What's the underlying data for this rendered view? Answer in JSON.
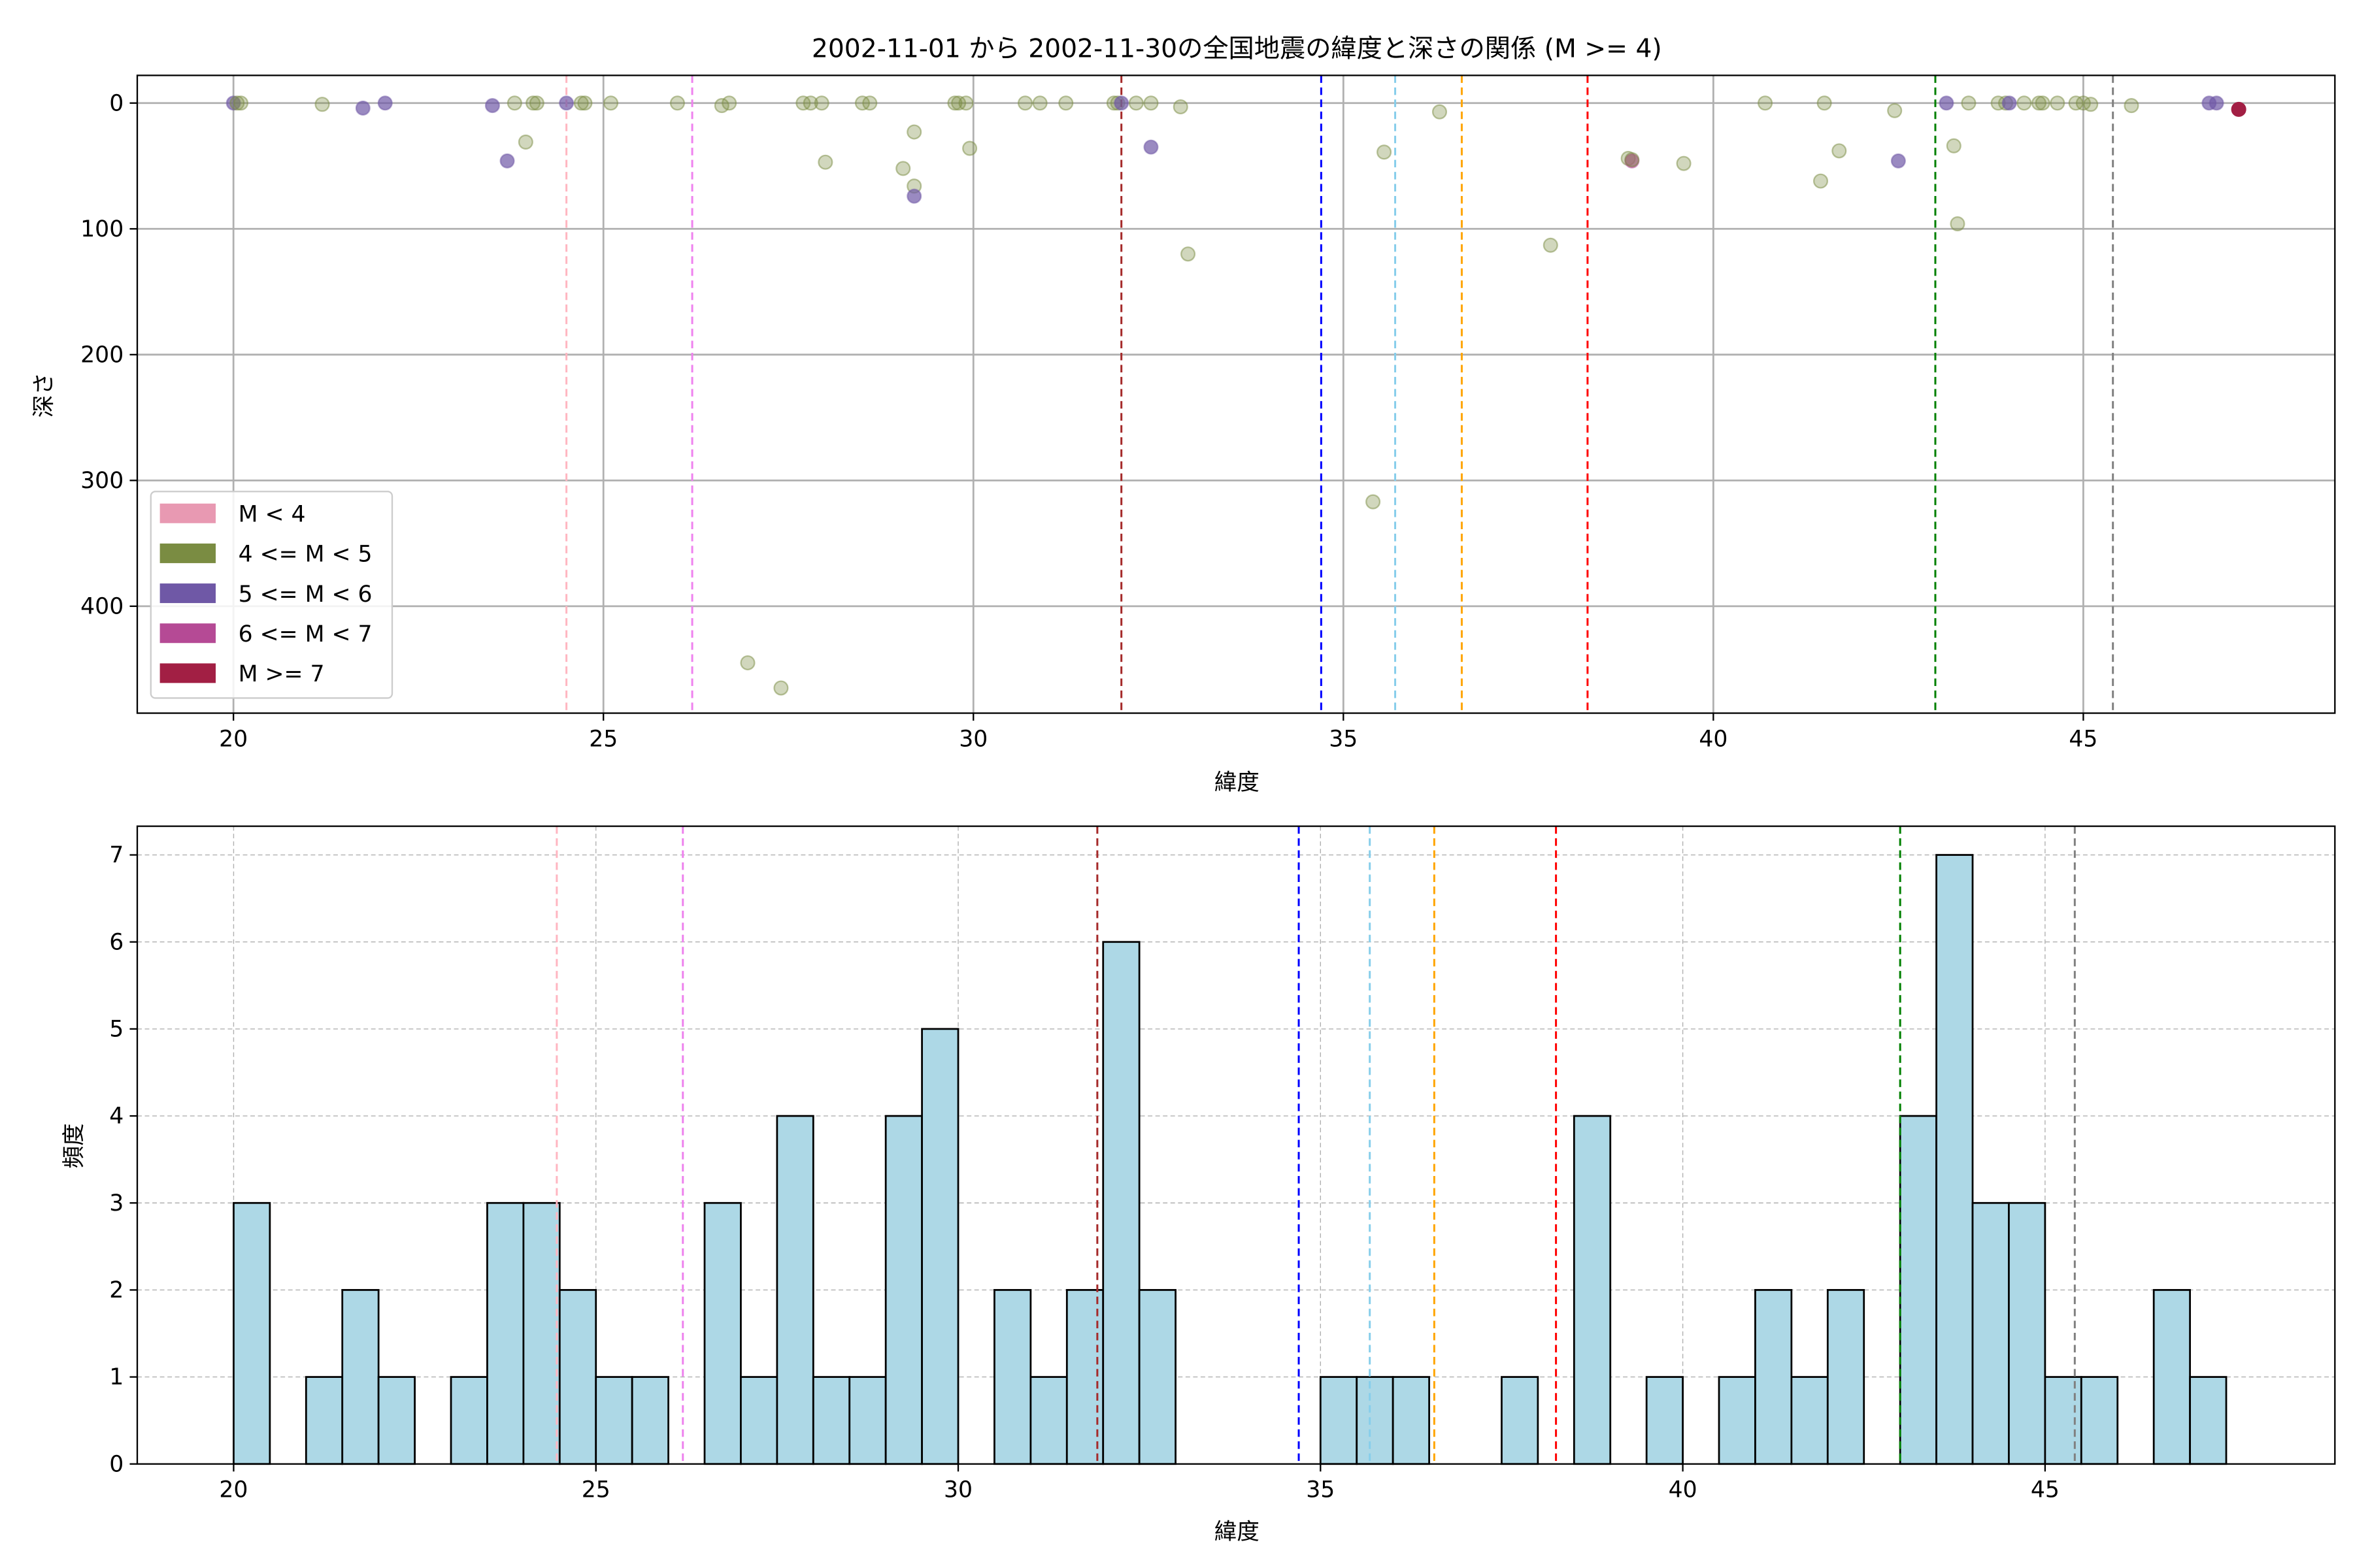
{
  "chart_data": [
    {
      "type": "scatter",
      "title": "2002-11-01 から 2002-11-30の全国地震の緯度と深さの関係 (M >= 4)",
      "xlabel": "緯度",
      "ylabel": "深さ",
      "xlim": [
        18.7,
        48.4
      ],
      "ylim": [
        485,
        -22
      ],
      "y_inverted": true,
      "grid": true,
      "xticks": [
        "20",
        "25",
        "30",
        "35",
        "40",
        "45"
      ],
      "xtick_values": [
        20,
        25,
        30,
        35,
        40,
        45
      ],
      "yticks": [
        "0",
        "100",
        "200",
        "300",
        "400"
      ],
      "ytick_values": [
        0,
        100,
        200,
        300,
        400
      ],
      "legend_position": "lower-left",
      "legend": [
        {
          "label": "M < 4",
          "color": "#e899b2"
        },
        {
          "label": "4 <= M < 5",
          "color": "#7a8c42"
        },
        {
          "label": "5 <= M < 6",
          "color": "#6f58a6"
        },
        {
          "label": "6 <= M < 7",
          "color": "#b54a95"
        },
        {
          "label": "M >= 7",
          "color": "#a21f44"
        }
      ],
      "points": [
        [
          20.0,
          0,
          2
        ],
        [
          20.05,
          0,
          1
        ],
        [
          20.1,
          0,
          1
        ],
        [
          21.2,
          1,
          1
        ],
        [
          21.75,
          4,
          2
        ],
        [
          22.05,
          0,
          2
        ],
        [
          23.5,
          2,
          2
        ],
        [
          23.7,
          46,
          2
        ],
        [
          23.8,
          0,
          1
        ],
        [
          23.95,
          31,
          1
        ],
        [
          24.05,
          0,
          1
        ],
        [
          24.1,
          0,
          1
        ],
        [
          24.5,
          0,
          2
        ],
        [
          24.7,
          0,
          1
        ],
        [
          24.75,
          0,
          1
        ],
        [
          25.1,
          0,
          1
        ],
        [
          26.0,
          0,
          1
        ],
        [
          26.6,
          2,
          1
        ],
        [
          26.7,
          0,
          1
        ],
        [
          26.95,
          445,
          1
        ],
        [
          27.4,
          465,
          1
        ],
        [
          27.7,
          0,
          1
        ],
        [
          27.8,
          0,
          1
        ],
        [
          27.95,
          0,
          1
        ],
        [
          28.0,
          47,
          1
        ],
        [
          28.5,
          0,
          1
        ],
        [
          28.6,
          0,
          1
        ],
        [
          29.05,
          52,
          1
        ],
        [
          29.2,
          23,
          1
        ],
        [
          29.2,
          66,
          1
        ],
        [
          29.2,
          74,
          2
        ],
        [
          29.75,
          0,
          1
        ],
        [
          29.8,
          0,
          1
        ],
        [
          29.9,
          0,
          1
        ],
        [
          29.95,
          36,
          1
        ],
        [
          30.7,
          0,
          1
        ],
        [
          30.9,
          0,
          1
        ],
        [
          31.25,
          0,
          1
        ],
        [
          31.9,
          0,
          1
        ],
        [
          31.95,
          0,
          1
        ],
        [
          32.0,
          0,
          2
        ],
        [
          32.2,
          0,
          1
        ],
        [
          32.4,
          0,
          1
        ],
        [
          32.4,
          35,
          2
        ],
        [
          32.8,
          3,
          1
        ],
        [
          32.9,
          120,
          1
        ],
        [
          35.4,
          317,
          1
        ],
        [
          35.55,
          39,
          1
        ],
        [
          36.3,
          7,
          1
        ],
        [
          37.8,
          113,
          1
        ],
        [
          38.85,
          44,
          1
        ],
        [
          38.9,
          46,
          3
        ],
        [
          38.9,
          45,
          1
        ],
        [
          39.6,
          48,
          1
        ],
        [
          40.7,
          0,
          1
        ],
        [
          41.45,
          62,
          1
        ],
        [
          41.5,
          0,
          1
        ],
        [
          41.7,
          38,
          1
        ],
        [
          42.45,
          6,
          1
        ],
        [
          42.5,
          46,
          2
        ],
        [
          43.15,
          0,
          2
        ],
        [
          43.25,
          34,
          1
        ],
        [
          43.3,
          96,
          1
        ],
        [
          43.45,
          0,
          1
        ],
        [
          43.85,
          0,
          1
        ],
        [
          43.95,
          0,
          1
        ],
        [
          44.0,
          0,
          2
        ],
        [
          44.2,
          0,
          1
        ],
        [
          44.4,
          0,
          1
        ],
        [
          44.45,
          0,
          1
        ],
        [
          44.65,
          0,
          1
        ],
        [
          44.9,
          0,
          1
        ],
        [
          45.0,
          0,
          1
        ],
        [
          45.1,
          1,
          1
        ],
        [
          45.65,
          2,
          1
        ],
        [
          46.7,
          0,
          2
        ],
        [
          46.8,
          0,
          2
        ],
        [
          47.1,
          5,
          4
        ]
      ],
      "point_format": "[latitude, depth, magnitude_class_index]",
      "reference_lines": [
        {
          "x": 24.5,
          "color": "#ffb6c1"
        },
        {
          "x": 26.2,
          "color": "#ee82ee"
        },
        {
          "x": 32.0,
          "color": "#a52a2a"
        },
        {
          "x": 34.7,
          "color": "#0000ff"
        },
        {
          "x": 35.7,
          "color": "#87ceeb"
        },
        {
          "x": 36.6,
          "color": "#ffa500"
        },
        {
          "x": 38.3,
          "color": "#ff0000"
        },
        {
          "x": 43.0,
          "color": "#008000"
        },
        {
          "x": 45.4,
          "color": "#808080"
        }
      ]
    },
    {
      "type": "bar",
      "subtype": "histogram",
      "title": "",
      "xlabel": "緯度",
      "ylabel": "頻度",
      "xlim": [
        18.67,
        49.0
      ],
      "ylim": [
        0,
        7.33
      ],
      "grid": true,
      "bar_color": "#add8e6",
      "bin_start": 20.0,
      "bin_width": 0.5,
      "values": [
        3,
        0,
        1,
        2,
        1,
        0,
        1,
        3,
        3,
        2,
        1,
        1,
        0,
        3,
        1,
        4,
        1,
        1,
        4,
        5,
        0,
        2,
        1,
        2,
        6,
        2,
        0,
        0,
        0,
        0,
        1,
        1,
        1,
        0,
        0,
        1,
        0,
        4,
        0,
        1,
        0,
        1,
        2,
        1,
        2,
        0,
        4,
        7,
        3,
        3,
        1,
        1,
        0,
        2,
        1
      ],
      "xticks": [
        "20",
        "25",
        "30",
        "35",
        "40",
        "45"
      ],
      "xtick_values": [
        20,
        25,
        30,
        35,
        40,
        45
      ],
      "yticks": [
        "0",
        "1",
        "2",
        "3",
        "4",
        "5",
        "6",
        "7"
      ],
      "ytick_values": [
        0,
        1,
        2,
        3,
        4,
        5,
        6,
        7
      ],
      "reference_lines": [
        {
          "x": 24.46,
          "color": "#ffb6c1"
        },
        {
          "x": 26.2,
          "color": "#ee82ee"
        },
        {
          "x": 31.92,
          "color": "#a52a2a"
        },
        {
          "x": 34.7,
          "color": "#0000ff"
        },
        {
          "x": 35.68,
          "color": "#87ceeb"
        },
        {
          "x": 36.57,
          "color": "#ffa500"
        },
        {
          "x": 38.25,
          "color": "#ff0000"
        },
        {
          "x": 43.0,
          "color": "#008000"
        },
        {
          "x": 45.41,
          "color": "#808080"
        }
      ]
    }
  ]
}
